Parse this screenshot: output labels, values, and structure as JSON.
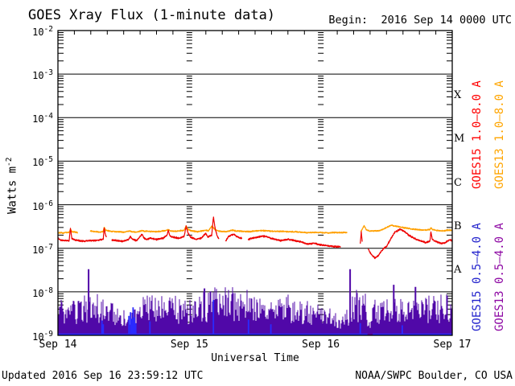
{
  "header": {
    "title": "GOES Xray Flux (1-minute data)",
    "begin_label": "Begin:  2016 Sep 14 0000 UTC"
  },
  "footer": {
    "updated": "Updated 2016 Sep 16 23:59:12 UTC",
    "source": "NOAA/SWPC Boulder, CO USA"
  },
  "chart_data": {
    "type": "line",
    "title": "GOES Xray Flux (1-minute data)",
    "xlabel": "Universal Time",
    "ylabel_base": "Watts m",
    "ylabel_exp": "-2",
    "x_axis": {
      "ticks": [
        "Sep 14",
        "Sep 15",
        "Sep 16",
        "Sep 17"
      ],
      "range_days": [
        0,
        3
      ],
      "minor_tick_hours": 3
    },
    "y_axis": {
      "scale": "log",
      "base": "10",
      "exponents": [
        -2,
        -3,
        -4,
        -5,
        -6,
        -7,
        -8,
        -9
      ],
      "range": [
        1e-09,
        0.01
      ],
      "grid": "solid-decades"
    },
    "flare_classes": [
      {
        "label": "X",
        "center_exp": -3.5
      },
      {
        "label": "M",
        "center_exp": -4.5
      },
      {
        "label": "C",
        "center_exp": -5.5
      },
      {
        "label": "B",
        "center_exp": -6.5
      },
      {
        "label": "A",
        "center_exp": -7.5
      }
    ],
    "noise_seed": 20160916,
    "series": [
      {
        "id": "goes15_long",
        "name": "GOES15 1.0–8.0 A",
        "kind": "trace",
        "color": "#ee0000",
        "label_color": "#ff0000",
        "scale": 1e-07,
        "jitter": 0.05,
        "anchors": [
          [
            0.0,
            1.7
          ],
          [
            0.02,
            1.55
          ],
          [
            0.06,
            1.5
          ],
          [
            0.085,
            1.5
          ],
          [
            0.095,
            2.9
          ],
          [
            0.105,
            1.7
          ],
          [
            0.13,
            1.55
          ],
          [
            0.16,
            1.5
          ],
          [
            0.2,
            1.45
          ],
          [
            0.24,
            1.5
          ],
          [
            0.28,
            1.5
          ],
          [
            0.32,
            1.55
          ],
          [
            0.345,
            1.6
          ],
          [
            0.352,
            3.0
          ],
          [
            0.36,
            2.1
          ],
          [
            0.37,
            1.8
          ],
          [
            0.375,
            null
          ],
          [
            0.41,
            1.55
          ],
          [
            0.45,
            1.5
          ],
          [
            0.49,
            1.45
          ],
          [
            0.54,
            1.6
          ],
          [
            0.55,
            1.9
          ],
          [
            0.565,
            1.6
          ],
          [
            0.6,
            1.5
          ],
          [
            0.64,
            2.1
          ],
          [
            0.655,
            1.7
          ],
          [
            0.68,
            1.6
          ],
          [
            0.7,
            1.7
          ],
          [
            0.75,
            1.6
          ],
          [
            0.8,
            1.7
          ],
          [
            0.83,
            2.0
          ],
          [
            0.84,
            2.6
          ],
          [
            0.852,
            1.9
          ],
          [
            0.88,
            1.8
          ],
          [
            0.92,
            1.7
          ],
          [
            0.96,
            1.9
          ],
          [
            0.975,
            3.2
          ],
          [
            0.99,
            2.2
          ],
          [
            1.01,
            1.8
          ],
          [
            1.05,
            1.6
          ],
          [
            1.09,
            1.7
          ],
          [
            1.125,
            2.2
          ],
          [
            1.14,
            1.8
          ],
          [
            1.17,
            2.0
          ],
          [
            1.183,
            5.3
          ],
          [
            1.195,
            3.0
          ],
          [
            1.21,
            2.0
          ],
          [
            1.225,
            1.6
          ],
          [
            1.235,
            null
          ],
          [
            1.275,
            1.45
          ],
          [
            1.3,
            1.9
          ],
          [
            1.34,
            2.1
          ],
          [
            1.37,
            1.8
          ],
          [
            1.4,
            1.7
          ],
          [
            1.41,
            null
          ],
          [
            1.445,
            1.6
          ],
          [
            1.48,
            1.7
          ],
          [
            1.52,
            1.8
          ],
          [
            1.56,
            1.9
          ],
          [
            1.6,
            1.8
          ],
          [
            1.65,
            1.6
          ],
          [
            1.7,
            1.5
          ],
          [
            1.75,
            1.6
          ],
          [
            1.8,
            1.5
          ],
          [
            1.85,
            1.4
          ],
          [
            1.9,
            1.25
          ],
          [
            1.95,
            1.3
          ],
          [
            2.0,
            1.2
          ],
          [
            2.05,
            1.15
          ],
          [
            2.1,
            1.1
          ],
          [
            2.15,
            1.08
          ],
          [
            2.165,
            null
          ],
          [
            2.3,
            1.2
          ],
          [
            2.308,
            2.4
          ],
          [
            2.316,
            1.3
          ],
          [
            2.325,
            null
          ],
          [
            2.36,
            0.95
          ],
          [
            2.385,
            0.72
          ],
          [
            2.41,
            0.6
          ],
          [
            2.435,
            0.66
          ],
          [
            2.46,
            0.85
          ],
          [
            2.48,
            1.0
          ],
          [
            2.5,
            1.1
          ],
          [
            2.53,
            1.6
          ],
          [
            2.56,
            2.3
          ],
          [
            2.6,
            2.7
          ],
          [
            2.63,
            2.5
          ],
          [
            2.67,
            2.0
          ],
          [
            2.71,
            1.7
          ],
          [
            2.75,
            1.5
          ],
          [
            2.8,
            1.35
          ],
          [
            2.83,
            1.45
          ],
          [
            2.838,
            2.4
          ],
          [
            2.848,
            1.6
          ],
          [
            2.88,
            1.4
          ],
          [
            2.92,
            1.3
          ],
          [
            2.95,
            1.35
          ],
          [
            2.975,
            1.55
          ],
          [
            3.0,
            1.5
          ]
        ]
      },
      {
        "id": "goes13_long",
        "name": "GOES13 1.0–8.0 A",
        "kind": "trace",
        "color": "#ffa000",
        "label_color": "#ffa500",
        "scale": 1e-07,
        "jitter": 0.04,
        "anchors": [
          [
            0.0,
            2.3
          ],
          [
            0.04,
            2.25
          ],
          [
            0.085,
            2.35
          ],
          [
            0.095,
            2.75
          ],
          [
            0.105,
            2.4
          ],
          [
            0.15,
            2.3
          ],
          [
            0.195,
            null
          ],
          [
            0.245,
            2.5
          ],
          [
            0.28,
            2.4
          ],
          [
            0.32,
            2.35
          ],
          [
            0.345,
            2.45
          ],
          [
            0.352,
            3.1
          ],
          [
            0.362,
            2.6
          ],
          [
            0.4,
            2.45
          ],
          [
            0.45,
            2.4
          ],
          [
            0.5,
            2.35
          ],
          [
            0.545,
            2.5
          ],
          [
            0.565,
            2.4
          ],
          [
            0.6,
            2.35
          ],
          [
            0.64,
            2.55
          ],
          [
            0.66,
            2.45
          ],
          [
            0.7,
            2.45
          ],
          [
            0.75,
            2.4
          ],
          [
            0.8,
            2.5
          ],
          [
            0.84,
            2.65
          ],
          [
            0.855,
            2.5
          ],
          [
            0.9,
            2.45
          ],
          [
            0.96,
            2.6
          ],
          [
            0.975,
            3.3
          ],
          [
            0.99,
            2.7
          ],
          [
            1.02,
            2.5
          ],
          [
            1.06,
            2.4
          ],
          [
            1.125,
            2.6
          ],
          [
            1.145,
            2.5
          ],
          [
            1.17,
            3.2
          ],
          [
            1.185,
            2.9
          ],
          [
            1.2,
            2.6
          ],
          [
            1.24,
            2.45
          ],
          [
            1.28,
            2.4
          ],
          [
            1.32,
            2.6
          ],
          [
            1.36,
            2.5
          ],
          [
            1.4,
            2.45
          ],
          [
            1.45,
            2.4
          ],
          [
            1.5,
            2.5
          ],
          [
            1.55,
            2.55
          ],
          [
            1.6,
            2.5
          ],
          [
            1.65,
            2.45
          ],
          [
            1.7,
            2.45
          ],
          [
            1.75,
            2.4
          ],
          [
            1.8,
            2.4
          ],
          [
            1.85,
            2.35
          ],
          [
            1.9,
            2.3
          ],
          [
            1.95,
            2.3
          ],
          [
            2.0,
            2.3
          ],
          [
            2.05,
            2.25
          ],
          [
            2.1,
            2.3
          ],
          [
            2.15,
            2.3
          ],
          [
            2.2,
            2.3
          ],
          [
            2.22,
            null
          ],
          [
            2.305,
            2.4
          ],
          [
            2.33,
            3.3
          ],
          [
            2.345,
            2.7
          ],
          [
            2.37,
            2.5
          ],
          [
            2.41,
            2.5
          ],
          [
            2.45,
            2.55
          ],
          [
            2.48,
            2.8
          ],
          [
            2.51,
            3.1
          ],
          [
            2.535,
            3.4
          ],
          [
            2.565,
            3.25
          ],
          [
            2.6,
            3.1
          ],
          [
            2.65,
            2.9
          ],
          [
            2.7,
            2.75
          ],
          [
            2.75,
            2.65
          ],
          [
            2.8,
            2.6
          ],
          [
            2.83,
            2.7
          ],
          [
            2.84,
            2.95
          ],
          [
            2.85,
            2.7
          ],
          [
            2.89,
            2.55
          ],
          [
            2.93,
            2.5
          ],
          [
            2.965,
            2.6
          ],
          [
            3.0,
            2.6
          ]
        ]
      },
      {
        "id": "goes15_short",
        "name": "GOES15 0.5–4.0 A",
        "kind": "floor",
        "color": "#2a2aff",
        "label_color": "#2222cc",
        "scale": 1e-09,
        "baseline": 1.05,
        "baseline_gaps": [
          [
            2.355,
            2.395
          ]
        ],
        "spikes": [
          [
            0.335,
            2.2
          ],
          [
            0.345,
            1.8
          ],
          [
            0.54,
            2.8
          ],
          [
            0.552,
            3.4
          ],
          [
            0.562,
            2.4
          ],
          [
            0.572,
            4.4
          ],
          [
            0.582,
            2.6
          ],
          [
            0.592,
            1.9
          ],
          [
            0.7,
            2.1
          ],
          [
            1.183,
            6.5
          ],
          [
            1.45,
            2.3
          ],
          [
            1.62,
            1.8
          ],
          [
            2.3,
            1.9
          ],
          [
            2.62,
            1.7
          ]
        ]
      },
      {
        "id": "goes13_short",
        "name": "GOES13 0.5–4.0 A",
        "kind": "noise",
        "color": "#5008a8",
        "label_color": "#8d07a3",
        "scale": 1e-09,
        "floor": 1.1,
        "envelope": [
          [
            0.0,
            7
          ],
          [
            0.05,
            9
          ],
          [
            0.1,
            8
          ],
          [
            0.15,
            6
          ],
          [
            0.2,
            9
          ],
          [
            0.26,
            8
          ],
          [
            0.3,
            9
          ],
          [
            0.35,
            8
          ],
          [
            0.4,
            7
          ],
          [
            0.45,
            5
          ],
          [
            0.5,
            4
          ],
          [
            0.55,
            4
          ],
          [
            0.6,
            6
          ],
          [
            0.65,
            8
          ],
          [
            0.7,
            9
          ],
          [
            0.75,
            8
          ],
          [
            0.8,
            10
          ],
          [
            0.85,
            9
          ],
          [
            0.9,
            8
          ],
          [
            0.95,
            7
          ],
          [
            1.0,
            8
          ],
          [
            1.05,
            9
          ],
          [
            1.1,
            10
          ],
          [
            1.15,
            12
          ],
          [
            1.2,
            13
          ],
          [
            1.25,
            15
          ],
          [
            1.3,
            15
          ],
          [
            1.35,
            14
          ],
          [
            1.4,
            13
          ],
          [
            1.45,
            11
          ],
          [
            1.5,
            8
          ],
          [
            1.55,
            7
          ],
          [
            1.6,
            7
          ],
          [
            1.65,
            8
          ],
          [
            1.7,
            8
          ],
          [
            1.75,
            9
          ],
          [
            1.8,
            7
          ],
          [
            1.85,
            6
          ],
          [
            1.9,
            7
          ],
          [
            1.95,
            6
          ],
          [
            2.0,
            6
          ],
          [
            2.05,
            5
          ],
          [
            2.1,
            4
          ],
          [
            2.14,
            2.5
          ],
          [
            2.18,
            3
          ],
          [
            2.22,
            6
          ],
          [
            2.26,
            12
          ],
          [
            2.3,
            11
          ],
          [
            2.34,
            9
          ],
          [
            2.37,
            3
          ],
          [
            2.41,
            7
          ],
          [
            2.45,
            6
          ],
          [
            2.49,
            10
          ],
          [
            2.53,
            13
          ],
          [
            2.57,
            12
          ],
          [
            2.61,
            8
          ],
          [
            2.64,
            7
          ],
          [
            2.68,
            9
          ],
          [
            2.72,
            10
          ],
          [
            2.76,
            8
          ],
          [
            2.8,
            8
          ],
          [
            2.85,
            11
          ],
          [
            2.9,
            9
          ],
          [
            2.95,
            10
          ],
          [
            3.0,
            9
          ]
        ],
        "spikes": [
          [
            0.233,
            33
          ],
          [
            1.115,
            12
          ],
          [
            2.223,
            33
          ],
          [
            2.555,
            14.5
          ],
          [
            2.72,
            13
          ]
        ]
      }
    ]
  }
}
